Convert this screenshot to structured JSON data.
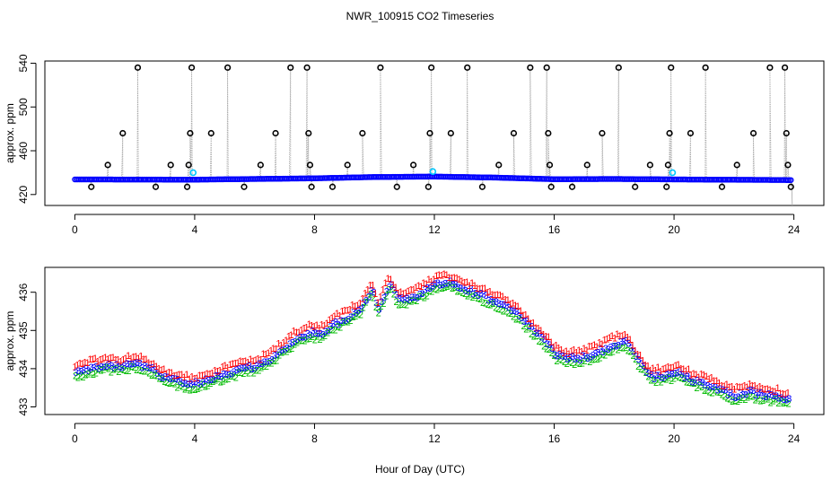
{
  "chart_data": {
    "title": "NWR_100915  CO2 Timeseries",
    "xlabel": "Hour of Day (UTC)",
    "colors": {
      "line": "#a8a8a8",
      "outlier": "#000000",
      "main": "#0000ff",
      "cyan": "#00c8ff",
      "s1": "#ff0000",
      "s2": "#00bb00",
      "s3": "#0000ff"
    },
    "panels": [
      {
        "type": "scatter",
        "ylabel": "approx. ppm",
        "xlim": [
          -1,
          25
        ],
        "ylim": [
          410,
          542
        ],
        "xticks": [
          0,
          4,
          8,
          12,
          16,
          20,
          24
        ],
        "yticks": [
          420,
          460,
          500,
          540
        ],
        "ytick_labels": [
          "420",
          "460",
          "500",
          "540"
        ],
        "baseline_knots": [
          [
            0,
            433.8
          ],
          [
            4,
            433.6
          ],
          [
            8,
            434.8
          ],
          [
            10,
            436.0
          ],
          [
            12,
            436.4
          ],
          [
            14,
            435.5
          ],
          [
            16,
            434.0
          ],
          [
            18,
            434.2
          ],
          [
            20,
            433.8
          ],
          [
            24,
            433.2
          ]
        ],
        "spikes": [
          {
            "x": 0.55,
            "y": 427
          },
          {
            "x": 1.1,
            "y": 447
          },
          {
            "x": 1.6,
            "y": 476
          },
          {
            "x": 2.1,
            "y": 536
          },
          {
            "x": 2.7,
            "y": 427
          },
          {
            "x": 3.2,
            "y": 447
          },
          {
            "x": 3.75,
            "y": 427
          },
          {
            "x": 3.8,
            "y": 447
          },
          {
            "x": 3.85,
            "y": 476
          },
          {
            "x": 3.9,
            "y": 536
          },
          {
            "x": 4.55,
            "y": 476
          },
          {
            "x": 5.1,
            "y": 536
          },
          {
            "x": 5.65,
            "y": 427
          },
          {
            "x": 6.2,
            "y": 447
          },
          {
            "x": 6.7,
            "y": 476
          },
          {
            "x": 7.2,
            "y": 536
          },
          {
            "x": 7.75,
            "y": 536
          },
          {
            "x": 7.8,
            "y": 476
          },
          {
            "x": 7.85,
            "y": 447
          },
          {
            "x": 7.9,
            "y": 427
          },
          {
            "x": 8.6,
            "y": 427
          },
          {
            "x": 9.1,
            "y": 447
          },
          {
            "x": 9.6,
            "y": 476
          },
          {
            "x": 10.2,
            "y": 536
          },
          {
            "x": 10.75,
            "y": 427
          },
          {
            "x": 11.3,
            "y": 447
          },
          {
            "x": 11.8,
            "y": 427
          },
          {
            "x": 11.85,
            "y": 476
          },
          {
            "x": 11.9,
            "y": 536
          },
          {
            "x": 12.55,
            "y": 476
          },
          {
            "x": 13.1,
            "y": 536
          },
          {
            "x": 13.6,
            "y": 427
          },
          {
            "x": 14.15,
            "y": 447
          },
          {
            "x": 14.65,
            "y": 476
          },
          {
            "x": 15.2,
            "y": 536
          },
          {
            "x": 15.75,
            "y": 536
          },
          {
            "x": 15.8,
            "y": 476
          },
          {
            "x": 15.85,
            "y": 447
          },
          {
            "x": 15.9,
            "y": 427
          },
          {
            "x": 16.6,
            "y": 427
          },
          {
            "x": 17.1,
            "y": 447
          },
          {
            "x": 17.6,
            "y": 476
          },
          {
            "x": 18.15,
            "y": 536
          },
          {
            "x": 18.7,
            "y": 427
          },
          {
            "x": 19.2,
            "y": 447
          },
          {
            "x": 19.75,
            "y": 427
          },
          {
            "x": 19.8,
            "y": 447
          },
          {
            "x": 19.85,
            "y": 476
          },
          {
            "x": 19.9,
            "y": 536
          },
          {
            "x": 20.55,
            "y": 476
          },
          {
            "x": 21.05,
            "y": 536
          },
          {
            "x": 21.6,
            "y": 427
          },
          {
            "x": 22.1,
            "y": 447
          },
          {
            "x": 22.65,
            "y": 476
          },
          {
            "x": 23.2,
            "y": 536
          },
          {
            "x": 23.7,
            "y": 536
          },
          {
            "x": 23.75,
            "y": 476
          },
          {
            "x": 23.8,
            "y": 447
          },
          {
            "x": 23.9,
            "y": 427
          }
        ],
        "cyan_points": [
          {
            "x": 3.95,
            "y": 440
          },
          {
            "x": 11.95,
            "y": 441
          },
          {
            "x": 19.95,
            "y": 440
          }
        ]
      },
      {
        "type": "scatter",
        "ylabel": "approx. ppm",
        "xlim": [
          -1,
          25
        ],
        "ylim": [
          432.8,
          436.65
        ],
        "xticks": [
          0,
          4,
          8,
          12,
          16,
          20,
          24
        ],
        "yticks": [
          433,
          434,
          435,
          436
        ],
        "ytick_labels": [
          "433",
          "434",
          "435",
          "436"
        ],
        "marker_labels": [
          "1",
          "2",
          "3"
        ],
        "knots": [
          [
            0,
            433.95
          ],
          [
            0.5,
            434.05
          ],
          [
            1.0,
            434.15
          ],
          [
            1.5,
            434.1
          ],
          [
            2.0,
            434.2
          ],
          [
            2.5,
            434.05
          ],
          [
            3.0,
            433.8
          ],
          [
            3.5,
            433.7
          ],
          [
            3.9,
            433.65
          ],
          [
            4.2,
            433.7
          ],
          [
            4.6,
            433.8
          ],
          [
            5.0,
            433.9
          ],
          [
            5.6,
            434.05
          ],
          [
            6.2,
            434.15
          ],
          [
            6.7,
            434.4
          ],
          [
            7.2,
            434.75
          ],
          [
            7.8,
            435.0
          ],
          [
            8.2,
            434.95
          ],
          [
            8.6,
            435.2
          ],
          [
            9.0,
            435.35
          ],
          [
            9.5,
            435.6
          ],
          [
            9.9,
            436.15
          ],
          [
            10.1,
            435.6
          ],
          [
            10.3,
            435.95
          ],
          [
            10.5,
            436.25
          ],
          [
            10.8,
            435.85
          ],
          [
            11.2,
            435.9
          ],
          [
            11.6,
            436.05
          ],
          [
            12.0,
            436.25
          ],
          [
            12.5,
            436.3
          ],
          [
            13.0,
            436.15
          ],
          [
            13.6,
            435.95
          ],
          [
            14.2,
            435.75
          ],
          [
            14.8,
            435.45
          ],
          [
            15.3,
            435.05
          ],
          [
            15.7,
            434.75
          ],
          [
            16.0,
            434.45
          ],
          [
            16.4,
            434.3
          ],
          [
            17.0,
            434.35
          ],
          [
            17.5,
            434.5
          ],
          [
            18.0,
            434.7
          ],
          [
            18.4,
            434.75
          ],
          [
            18.8,
            434.25
          ],
          [
            19.2,
            433.85
          ],
          [
            19.7,
            433.85
          ],
          [
            20.1,
            433.95
          ],
          [
            20.6,
            433.75
          ],
          [
            21.0,
            433.65
          ],
          [
            21.5,
            433.5
          ],
          [
            22.0,
            433.35
          ],
          [
            22.5,
            433.45
          ],
          [
            23.0,
            433.35
          ],
          [
            23.5,
            433.3
          ],
          [
            23.85,
            433.2
          ]
        ]
      }
    ]
  }
}
